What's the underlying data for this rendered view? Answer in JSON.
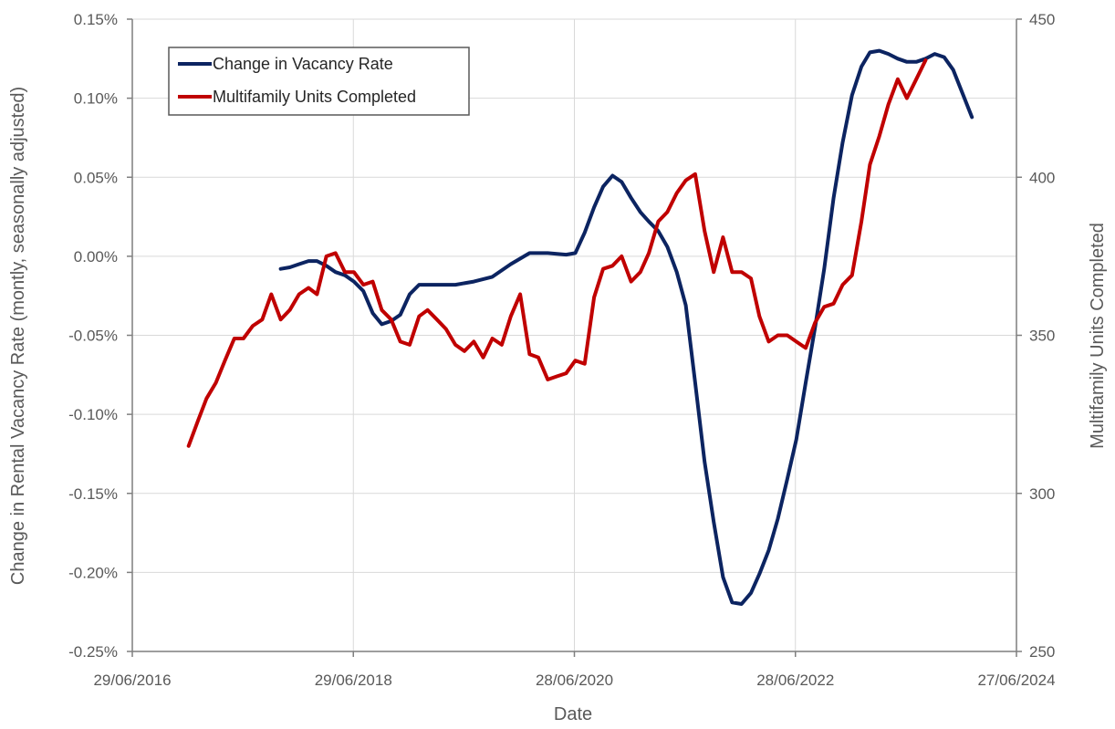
{
  "chart_data": {
    "type": "line",
    "xlabel": "Date",
    "ylabel_left": "Change in Rental Vacancy Rate (montly, seasonally adjusted)",
    "ylabel_right": "Multifamily Units Completed",
    "x_ticks": [
      "29/06/2016",
      "29/06/2018",
      "28/06/2020",
      "28/06/2022",
      "27/06/2024"
    ],
    "y_left_ticks": [
      "0.15%",
      "0.10%",
      "0.05%",
      "0.00%",
      "-0.05%",
      "-0.10%",
      "-0.15%",
      "-0.20%",
      "-0.25%"
    ],
    "y_right_ticks": [
      "450",
      "400",
      "350",
      "300",
      "250"
    ],
    "x_range": [
      "2016-06-29",
      "2024-06-27"
    ],
    "y_left_range": [
      -0.25,
      0.15
    ],
    "y_right_range": [
      250,
      450
    ],
    "grid": true,
    "legend_position": "top-left",
    "series": [
      {
        "name": "Change in Vacancy Rate",
        "axis": "left",
        "color": "#0c2461",
        "points": [
          [
            "2017-11-01",
            -0.008
          ],
          [
            "2017-12-01",
            -0.007
          ],
          [
            "2018-01-01",
            -0.005
          ],
          [
            "2018-02-01",
            -0.003
          ],
          [
            "2018-03-01",
            -0.003
          ],
          [
            "2018-04-01",
            -0.006
          ],
          [
            "2018-05-01",
            -0.01
          ],
          [
            "2018-06-01",
            -0.012
          ],
          [
            "2018-07-01",
            -0.016
          ],
          [
            "2018-08-01",
            -0.022
          ],
          [
            "2018-09-01",
            -0.036
          ],
          [
            "2018-10-01",
            -0.043
          ],
          [
            "2018-11-01",
            -0.041
          ],
          [
            "2018-12-01",
            -0.037
          ],
          [
            "2019-01-01",
            -0.024
          ],
          [
            "2019-02-01",
            -0.018
          ],
          [
            "2019-04-01",
            -0.018
          ],
          [
            "2019-06-01",
            -0.018
          ],
          [
            "2019-08-01",
            -0.016
          ],
          [
            "2019-10-01",
            -0.013
          ],
          [
            "2019-12-01",
            -0.005
          ],
          [
            "2020-02-01",
            0.002
          ],
          [
            "2020-04-01",
            0.002
          ],
          [
            "2020-06-01",
            0.001
          ],
          [
            "2020-07-01",
            0.002
          ],
          [
            "2020-08-01",
            0.015
          ],
          [
            "2020-09-01",
            0.031
          ],
          [
            "2020-10-01",
            0.044
          ],
          [
            "2020-11-01",
            0.051
          ],
          [
            "2020-12-01",
            0.047
          ],
          [
            "2021-01-01",
            0.037
          ],
          [
            "2021-02-01",
            0.028
          ],
          [
            "2021-03-01",
            0.022
          ],
          [
            "2021-04-01",
            0.016
          ],
          [
            "2021-05-01",
            0.006
          ],
          [
            "2021-06-01",
            -0.01
          ],
          [
            "2021-07-01",
            -0.031
          ],
          [
            "2021-08-01",
            -0.08
          ],
          [
            "2021-09-01",
            -0.13
          ],
          [
            "2021-10-01",
            -0.168
          ],
          [
            "2021-11-01",
            -0.203
          ],
          [
            "2021-12-01",
            -0.219
          ],
          [
            "2022-01-01",
            -0.22
          ],
          [
            "2022-02-01",
            -0.213
          ],
          [
            "2022-03-01",
            -0.201
          ],
          [
            "2022-04-01",
            -0.186
          ],
          [
            "2022-05-01",
            -0.166
          ],
          [
            "2022-06-01",
            -0.141
          ],
          [
            "2022-07-01",
            -0.116
          ],
          [
            "2022-08-01",
            -0.08
          ],
          [
            "2022-09-01",
            -0.045
          ],
          [
            "2022-10-01",
            -0.008
          ],
          [
            "2022-11-01",
            0.037
          ],
          [
            "2022-12-01",
            0.072
          ],
          [
            "2023-01-01",
            0.102
          ],
          [
            "2023-02-01",
            0.12
          ],
          [
            "2023-03-01",
            0.129
          ],
          [
            "2023-04-01",
            0.13
          ],
          [
            "2023-05-01",
            0.128
          ],
          [
            "2023-06-01",
            0.125
          ],
          [
            "2023-07-01",
            0.123
          ],
          [
            "2023-08-01",
            0.123
          ],
          [
            "2023-09-01",
            0.125
          ],
          [
            "2023-10-01",
            0.128
          ],
          [
            "2023-11-01",
            0.126
          ],
          [
            "2023-12-01",
            0.118
          ],
          [
            "2024-01-01",
            0.103
          ],
          [
            "2024-02-01",
            0.088
          ]
        ]
      },
      {
        "name": "Multifamily Units Completed",
        "axis": "right",
        "color": "#c00000",
        "points": [
          [
            "2017-01-01",
            315
          ],
          [
            "2017-02-01",
            323
          ],
          [
            "2017-03-01",
            330
          ],
          [
            "2017-04-01",
            335
          ],
          [
            "2017-05-01",
            342
          ],
          [
            "2017-06-01",
            349
          ],
          [
            "2017-07-01",
            349
          ],
          [
            "2017-08-01",
            353
          ],
          [
            "2017-09-01",
            355
          ],
          [
            "2017-10-01",
            363
          ],
          [
            "2017-11-01",
            355
          ],
          [
            "2017-12-01",
            358
          ],
          [
            "2018-01-01",
            363
          ],
          [
            "2018-02-01",
            365
          ],
          [
            "2018-03-01",
            363
          ],
          [
            "2018-04-01",
            375
          ],
          [
            "2018-05-01",
            376
          ],
          [
            "2018-06-01",
            370
          ],
          [
            "2018-07-01",
            370
          ],
          [
            "2018-08-01",
            366
          ],
          [
            "2018-09-01",
            367
          ],
          [
            "2018-10-01",
            358
          ],
          [
            "2018-11-01",
            355
          ],
          [
            "2018-12-01",
            348
          ],
          [
            "2019-01-01",
            347
          ],
          [
            "2019-02-01",
            356
          ],
          [
            "2019-03-01",
            358
          ],
          [
            "2019-04-01",
            355
          ],
          [
            "2019-05-01",
            352
          ],
          [
            "2019-06-01",
            347
          ],
          [
            "2019-07-01",
            345
          ],
          [
            "2019-08-01",
            348
          ],
          [
            "2019-09-01",
            343
          ],
          [
            "2019-10-01",
            349
          ],
          [
            "2019-11-01",
            347
          ],
          [
            "2019-12-01",
            356
          ],
          [
            "2020-01-01",
            363
          ],
          [
            "2020-02-01",
            344
          ],
          [
            "2020-03-01",
            343
          ],
          [
            "2020-04-01",
            336
          ],
          [
            "2020-05-01",
            337
          ],
          [
            "2020-06-01",
            338
          ],
          [
            "2020-07-01",
            342
          ],
          [
            "2020-08-01",
            341
          ],
          [
            "2020-09-01",
            362
          ],
          [
            "2020-10-01",
            371
          ],
          [
            "2020-11-01",
            372
          ],
          [
            "2020-12-01",
            375
          ],
          [
            "2021-01-01",
            367
          ],
          [
            "2021-02-01",
            370
          ],
          [
            "2021-03-01",
            376
          ],
          [
            "2021-04-01",
            386
          ],
          [
            "2021-05-01",
            389
          ],
          [
            "2021-06-01",
            395
          ],
          [
            "2021-07-01",
            399
          ],
          [
            "2021-08-01",
            401
          ],
          [
            "2021-09-01",
            383
          ],
          [
            "2021-10-01",
            370
          ],
          [
            "2021-11-01",
            381
          ],
          [
            "2021-12-01",
            370
          ],
          [
            "2022-01-01",
            370
          ],
          [
            "2022-02-01",
            368
          ],
          [
            "2022-03-01",
            356
          ],
          [
            "2022-04-01",
            348
          ],
          [
            "2022-05-01",
            350
          ],
          [
            "2022-06-01",
            350
          ],
          [
            "2022-07-01",
            348
          ],
          [
            "2022-08-01",
            346
          ],
          [
            "2022-09-01",
            354
          ],
          [
            "2022-10-01",
            359
          ],
          [
            "2022-11-01",
            360
          ],
          [
            "2022-12-01",
            366
          ],
          [
            "2023-01-01",
            369
          ],
          [
            "2023-02-01",
            386
          ],
          [
            "2023-03-01",
            404
          ],
          [
            "2023-04-01",
            413
          ],
          [
            "2023-05-01",
            423
          ],
          [
            "2023-06-01",
            431
          ],
          [
            "2023-07-01",
            425
          ],
          [
            "2023-08-01",
            431
          ],
          [
            "2023-09-01",
            437
          ]
        ]
      }
    ]
  }
}
